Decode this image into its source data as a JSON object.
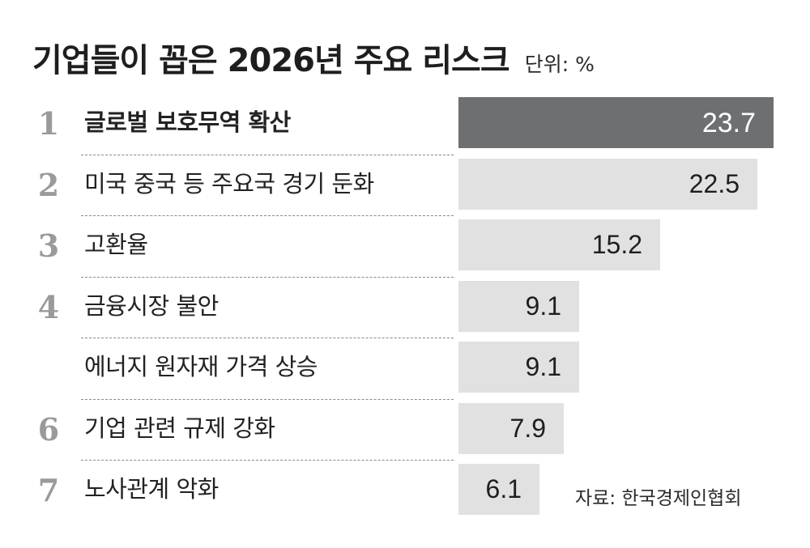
{
  "chart_data": {
    "type": "bar",
    "orientation": "horizontal",
    "title": "기업들이 꼽은 2026년 주요 리스크",
    "unit": "단위: %",
    "ranks": [
      "1",
      "2",
      "3",
      "4",
      "",
      "6",
      "7"
    ],
    "categories": [
      "글로벌 보호무역 확산",
      "미국 중국 등 주요국 경기 둔화",
      "고환율",
      "금융시장 불안",
      "에너지 원자재 가격 상승",
      "기업 관련 규제 강화",
      "노사관계 악화"
    ],
    "values": [
      23.7,
      22.5,
      15.2,
      9.1,
      9.1,
      7.9,
      6.1
    ],
    "value_labels": [
      "23.7",
      "22.5",
      "15.2",
      "9.1",
      "9.1",
      "7.9",
      "6.1"
    ],
    "highlight_index": 0,
    "colors": {
      "highlight_bar": "#6e6f71",
      "bar": "#e1e1e1",
      "rank": "#9a9a9a"
    },
    "source": "자료: 한국경제인협회"
  }
}
